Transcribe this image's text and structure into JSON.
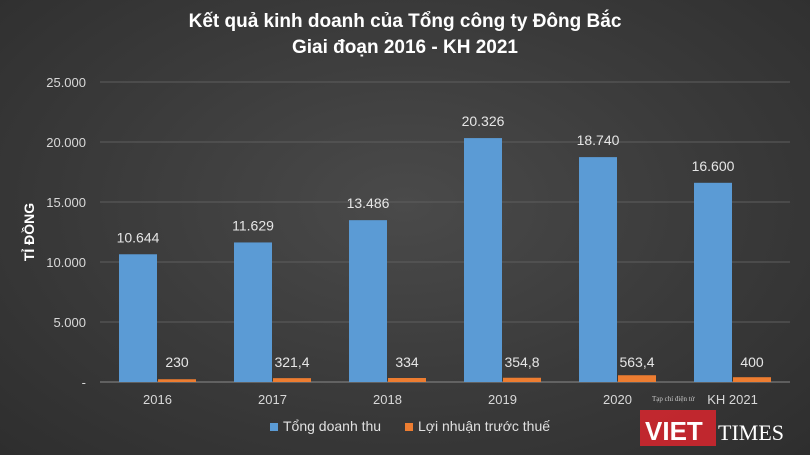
{
  "chart_data": {
    "type": "bar",
    "title": [
      "Kết quả kinh doanh của Tổng công ty Đông Bắc",
      "Giai đoạn 2016 - KH 2021"
    ],
    "ylabel": "TỈ ĐỒNG",
    "xlabel": "",
    "categories": [
      "2016",
      "2017",
      "2018",
      "2019",
      "2020",
      "KH 2021"
    ],
    "ylim": [
      0,
      25000
    ],
    "y_ticks": [
      {
        "value": 0,
        "label": "-"
      },
      {
        "value": 5000,
        "label": "5.000"
      },
      {
        "value": 10000,
        "label": "10.000"
      },
      {
        "value": 15000,
        "label": "15.000"
      },
      {
        "value": 20000,
        "label": "20.000"
      },
      {
        "value": 25000,
        "label": "25.000"
      }
    ],
    "grid": true,
    "legend_position": "bottom",
    "series": [
      {
        "name": "Tổng doanh thu",
        "color": "#5b9bd5",
        "values": [
          10644,
          11629,
          13486,
          20326,
          18740,
          16600
        ],
        "labels": [
          "10.644",
          "11.629",
          "13.486",
          "20.326",
          "18.740",
          "16.600"
        ]
      },
      {
        "name": "Lợi nhuận trước thuế",
        "color": "#ed7d31",
        "values": [
          230,
          321.4,
          334,
          354.8,
          563.4,
          400
        ],
        "labels": [
          "230",
          "321,4",
          "334",
          "354,8",
          "563,4",
          "400"
        ]
      }
    ]
  },
  "watermark": {
    "caption": "Tạp chí điện tử",
    "brand_left": "VIET",
    "brand_right": "TIMES"
  }
}
